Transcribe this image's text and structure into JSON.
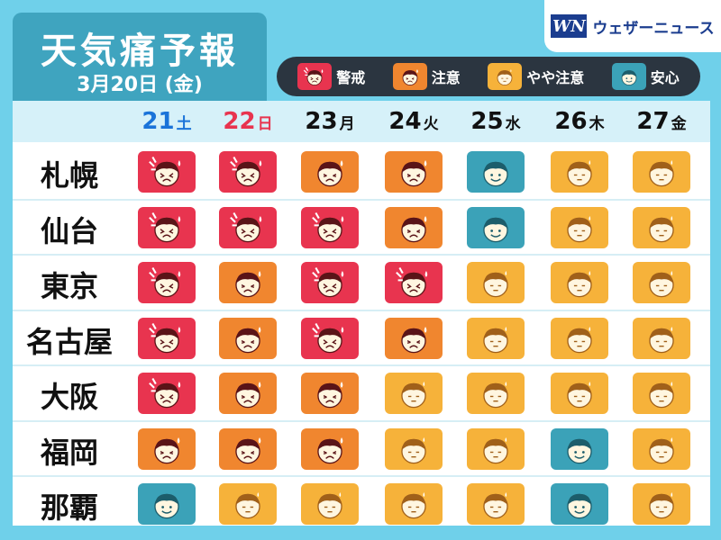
{
  "title": "天気痛予報",
  "date": "3月20日 (金)",
  "brand": {
    "logo": "WN",
    "name": "ウェザーニュース"
  },
  "legend": [
    {
      "label": "警戒",
      "level": "warning",
      "color": "#e8344f"
    },
    {
      "label": "注意",
      "level": "caution",
      "color": "#f0862f"
    },
    {
      "label": "やや注意",
      "level": "slight-caution",
      "color": "#f6b23a"
    },
    {
      "label": "安心",
      "level": "safe",
      "color": "#3ba2b8"
    }
  ],
  "days": [
    {
      "num": "21",
      "dow": "土",
      "color": "#1a73d9"
    },
    {
      "num": "22",
      "dow": "日",
      "color": "#e8344f"
    },
    {
      "num": "23",
      "dow": "月",
      "color": "#111111"
    },
    {
      "num": "24",
      "dow": "火",
      "color": "#111111"
    },
    {
      "num": "25",
      "dow": "水",
      "color": "#111111"
    },
    {
      "num": "26",
      "dow": "木",
      "color": "#111111"
    },
    {
      "num": "27",
      "dow": "金",
      "color": "#111111"
    }
  ],
  "cities": [
    {
      "name": "札幌",
      "levels": [
        "warning",
        "warning",
        "caution",
        "caution",
        "safe",
        "slight-caution",
        "slight-caution"
      ]
    },
    {
      "name": "仙台",
      "levels": [
        "warning",
        "warning",
        "warning",
        "caution",
        "safe",
        "slight-caution",
        "slight-caution"
      ]
    },
    {
      "name": "東京",
      "levels": [
        "warning",
        "caution",
        "warning",
        "warning",
        "slight-caution",
        "slight-caution",
        "slight-caution"
      ]
    },
    {
      "name": "名古屋",
      "levels": [
        "warning",
        "caution",
        "warning",
        "caution",
        "slight-caution",
        "slight-caution",
        "slight-caution"
      ]
    },
    {
      "name": "大阪",
      "levels": [
        "warning",
        "caution",
        "caution",
        "slight-caution",
        "slight-caution",
        "slight-caution",
        "slight-caution"
      ]
    },
    {
      "name": "福岡",
      "levels": [
        "caution",
        "caution",
        "caution",
        "slight-caution",
        "slight-caution",
        "safe",
        "slight-caution"
      ]
    },
    {
      "name": "那覇",
      "levels": [
        "safe",
        "slight-caution",
        "slight-caution",
        "slight-caution",
        "slight-caution",
        "safe",
        "slight-caution"
      ]
    }
  ]
}
